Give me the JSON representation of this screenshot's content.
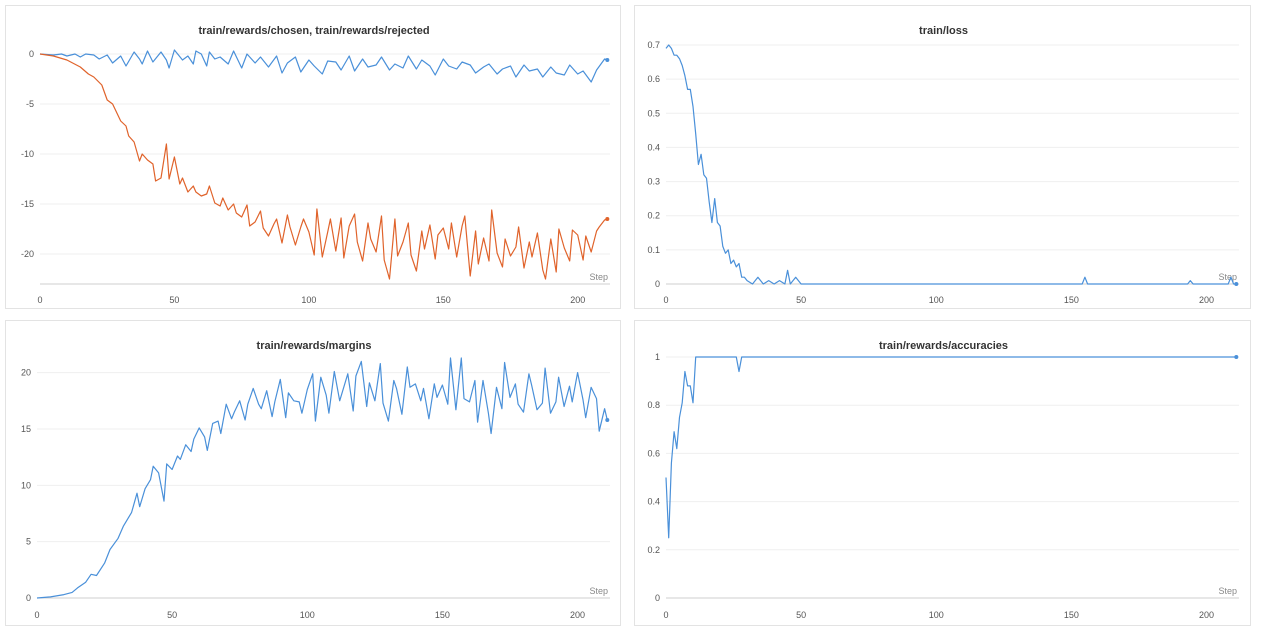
{
  "colors": {
    "blue": "#4a90d9",
    "orange": "#e0632b"
  },
  "chart_data": [
    {
      "type": "line",
      "title": "train/rewards/chosen, train/rewards/rejected",
      "xlabel": "Step",
      "xlim": [
        0,
        212
      ],
      "ylim": [
        -23,
        0.6
      ],
      "xticks": [
        0,
        50,
        100,
        150,
        200
      ],
      "yticks": [
        0,
        -5,
        -10,
        -15,
        -20
      ],
      "series": [
        {
          "color": "#4a90d9",
          "x": [
            0,
            5,
            8,
            10,
            13,
            15,
            17,
            20,
            22,
            25,
            27,
            30,
            32,
            35,
            37,
            38,
            40,
            42,
            45,
            47,
            48,
            50,
            53,
            55,
            57,
            58,
            60,
            62,
            63,
            65,
            67,
            70,
            72,
            75,
            77,
            80,
            82,
            85,
            88,
            90,
            92,
            95,
            97,
            100,
            102,
            105,
            107,
            110,
            112,
            115,
            117,
            120,
            122,
            125,
            127,
            130,
            132,
            135,
            137,
            140,
            142,
            145,
            147,
            150,
            152,
            155,
            157,
            160,
            162,
            165,
            167,
            170,
            172,
            175,
            177,
            180,
            182,
            185,
            187,
            190,
            192,
            195,
            197,
            200,
            202,
            205,
            207,
            210,
            211
          ],
          "y": [
            0,
            -0.1,
            0,
            -0.2,
            0,
            -0.3,
            0,
            -0.1,
            -0.5,
            -0.1,
            -0.9,
            -0.2,
            -1.2,
            0.2,
            -0.5,
            -1.0,
            0.3,
            -0.8,
            0.2,
            -0.6,
            -1.4,
            0.4,
            -0.6,
            -0.2,
            -1.0,
            0.3,
            0,
            -1.2,
            0.2,
            -0.5,
            -0.3,
            -1.0,
            0.3,
            -1.4,
            0,
            -0.9,
            -0.3,
            -1.3,
            -0.2,
            -1.9,
            -0.9,
            -0.3,
            -1.8,
            -0.6,
            -1.2,
            -2.0,
            -0.7,
            -0.8,
            -1.6,
            -0.2,
            -1.7,
            -0.5,
            -1.3,
            -1.1,
            -0.3,
            -1.6,
            -1.0,
            -1.4,
            -0.2,
            -1.5,
            -0.6,
            -1.2,
            -2.1,
            -0.5,
            -1.2,
            -1.5,
            -0.8,
            -1.1,
            -1.9,
            -1.3,
            -1.0,
            -2.0,
            -1.5,
            -1.2,
            -2.3,
            -1.1,
            -1.7,
            -1.5,
            -2.3,
            -1.3,
            -1.9,
            -2.1,
            -1.1,
            -2.0,
            -1.7,
            -2.8,
            -1.6,
            -0.5,
            -0.6
          ]
        },
        {
          "color": "#e0632b",
          "x": [
            0,
            5,
            10,
            15,
            18,
            20,
            23,
            25,
            27,
            30,
            32,
            33,
            35,
            37,
            38,
            40,
            42,
            43,
            45,
            47,
            48,
            50,
            52,
            53,
            55,
            57,
            58,
            60,
            62,
            63,
            65,
            67,
            68,
            70,
            72,
            73,
            75,
            77,
            78,
            80,
            82,
            83,
            85,
            87,
            88,
            90,
            92,
            93,
            95,
            97,
            98,
            100,
            102,
            103,
            105,
            107,
            108,
            110,
            112,
            113,
            115,
            117,
            118,
            120,
            122,
            123,
            125,
            127,
            128,
            130,
            132,
            133,
            135,
            137,
            138,
            140,
            142,
            143,
            145,
            147,
            148,
            150,
            152,
            153,
            155,
            157,
            158,
            160,
            162,
            163,
            165,
            167,
            168,
            170,
            172,
            173,
            175,
            177,
            178,
            180,
            182,
            183,
            185,
            187,
            188,
            190,
            192,
            193,
            195,
            197,
            198,
            200,
            202,
            203,
            205,
            207,
            208,
            210,
            211
          ],
          "y": [
            0,
            -0.2,
            -0.6,
            -1.3,
            -2.0,
            -2.3,
            -3.1,
            -4.6,
            -5.0,
            -6.7,
            -7.2,
            -8.2,
            -8.8,
            -10.7,
            -10.0,
            -10.6,
            -11.0,
            -12.7,
            -12.4,
            -9.0,
            -12.5,
            -10.3,
            -13.0,
            -12.4,
            -13.8,
            -13.2,
            -13.8,
            -14.2,
            -14.0,
            -13.2,
            -14.9,
            -15.2,
            -14.4,
            -15.6,
            -15.0,
            -15.9,
            -16.3,
            -15.1,
            -17.2,
            -16.8,
            -15.7,
            -17.4,
            -18.2,
            -17.0,
            -16.5,
            -18.9,
            -16.1,
            -17.3,
            -19.1,
            -17.3,
            -16.5,
            -17.8,
            -20.1,
            -15.5,
            -20.3,
            -17.8,
            -16.5,
            -19.7,
            -16.4,
            -20.4,
            -17.2,
            -16.0,
            -18.8,
            -20.7,
            -16.9,
            -18.5,
            -19.8,
            -16.2,
            -20.6,
            -22.5,
            -16.5,
            -20.2,
            -18.8,
            -16.9,
            -20.1,
            -21.7,
            -17.7,
            -19.5,
            -17.1,
            -20.5,
            -18.1,
            -17.4,
            -19.5,
            -16.9,
            -20.3,
            -17.2,
            -16.2,
            -22.2,
            -17.7,
            -21.0,
            -18.4,
            -20.7,
            -15.6,
            -19.9,
            -21.3,
            -18.5,
            -20.2,
            -19.3,
            -17.3,
            -21.4,
            -18.8,
            -20.3,
            -17.9,
            -21.6,
            -22.5,
            -18.5,
            -21.8,
            -17.5,
            -19.4,
            -20.7,
            -17.6,
            -18.1,
            -20.6,
            -18.2,
            -19.8,
            -17.7,
            -17.3,
            -16.6,
            -16.5
          ]
        }
      ]
    },
    {
      "type": "line",
      "title": "train/loss",
      "xlabel": "Step",
      "xlim": [
        0,
        212
      ],
      "ylim": [
        0,
        0.7
      ],
      "xticks": [
        0,
        50,
        100,
        150,
        200
      ],
      "yticks": [
        0,
        0.1,
        0.2,
        0.3,
        0.4,
        0.5,
        0.6,
        0.7
      ],
      "series": [
        {
          "color": "#4a90d9",
          "x": [
            0,
            1,
            2,
            3,
            4,
            5,
            6,
            7,
            8,
            9,
            10,
            11,
            12,
            13,
            14,
            15,
            16,
            17,
            18,
            19,
            20,
            21,
            22,
            23,
            24,
            25,
            26,
            27,
            28,
            29,
            30,
            32,
            34,
            36,
            38,
            40,
            42,
            44,
            45,
            46,
            47,
            48,
            50,
            60,
            80,
            100,
            120,
            150,
            154,
            155,
            156,
            160,
            190,
            193,
            194,
            195,
            200,
            205,
            208,
            209,
            210,
            211
          ],
          "y": [
            0.69,
            0.7,
            0.69,
            0.67,
            0.67,
            0.66,
            0.64,
            0.61,
            0.57,
            0.57,
            0.52,
            0.44,
            0.35,
            0.38,
            0.32,
            0.31,
            0.24,
            0.18,
            0.25,
            0.18,
            0.17,
            0.11,
            0.09,
            0.1,
            0.06,
            0.07,
            0.05,
            0.06,
            0.02,
            0.02,
            0.01,
            0.0,
            0.02,
            0.0,
            0.01,
            0.0,
            0.01,
            0.0,
            0.04,
            0.0,
            0.01,
            0.02,
            0.0,
            0.0,
            0.0,
            0.0,
            0.0,
            0.0,
            0.0,
            0.02,
            0.0,
            0.0,
            0.0,
            0.0,
            0.01,
            0.0,
            0.0,
            0.0,
            0.0,
            0.02,
            0.0,
            0.0
          ]
        }
      ]
    },
    {
      "type": "line",
      "title": "train/rewards/margins",
      "xlabel": "Step",
      "xlim": [
        0,
        212
      ],
      "ylim": [
        0,
        21.3
      ],
      "xticks": [
        0,
        50,
        100,
        150,
        200
      ],
      "yticks": [
        0,
        5,
        10,
        15,
        20
      ],
      "series": [
        {
          "color": "#4a90d9",
          "x": [
            0,
            5,
            10,
            13,
            15,
            18,
            20,
            22,
            25,
            27,
            30,
            32,
            35,
            37,
            38,
            40,
            42,
            43,
            45,
            47,
            48,
            50,
            52,
            53,
            55,
            57,
            58,
            60,
            62,
            63,
            65,
            67,
            68,
            70,
            72,
            73,
            75,
            77,
            78,
            80,
            82,
            83,
            85,
            87,
            88,
            90,
            92,
            93,
            95,
            97,
            98,
            100,
            102,
            103,
            105,
            107,
            108,
            110,
            112,
            113,
            115,
            117,
            118,
            120,
            122,
            123,
            125,
            127,
            128,
            130,
            132,
            133,
            135,
            137,
            138,
            140,
            142,
            143,
            145,
            147,
            148,
            150,
            152,
            153,
            155,
            157,
            158,
            160,
            162,
            163,
            165,
            167,
            168,
            170,
            172,
            173,
            175,
            177,
            178,
            180,
            182,
            183,
            185,
            187,
            188,
            190,
            192,
            193,
            195,
            197,
            198,
            200,
            202,
            203,
            205,
            207,
            208,
            210,
            211
          ],
          "y": [
            0,
            0.1,
            0.3,
            0.5,
            0.9,
            1.4,
            2.1,
            2.0,
            3.1,
            4.3,
            5.3,
            6.4,
            7.6,
            9.3,
            8.1,
            9.7,
            10.5,
            11.7,
            11.1,
            8.6,
            11.9,
            11.4,
            12.6,
            12.3,
            13.6,
            13.0,
            14.1,
            15.1,
            14.3,
            13.1,
            15.5,
            15.7,
            14.6,
            17.2,
            15.9,
            16.5,
            17.5,
            15.8,
            17.2,
            18.6,
            17.2,
            16.8,
            18.4,
            16.1,
            17.4,
            19.4,
            16.0,
            18.2,
            17.5,
            17.4,
            16.4,
            18.5,
            19.9,
            15.7,
            19.6,
            18.0,
            16.4,
            20.1,
            17.5,
            18.3,
            19.9,
            16.6,
            19.7,
            21.0,
            17.0,
            19.1,
            17.5,
            20.8,
            17.3,
            15.7,
            19.3,
            18.6,
            16.3,
            20.5,
            18.7,
            19.0,
            17.5,
            18.6,
            15.9,
            19.0,
            17.8,
            18.9,
            17.2,
            21.3,
            16.7,
            21.3,
            17.7,
            17.4,
            19.3,
            15.6,
            19.3,
            16.4,
            14.6,
            18.7,
            16.8,
            20.9,
            17.8,
            19.0,
            17.2,
            16.5,
            19.9,
            18.9,
            16.7,
            17.3,
            20.4,
            16.4,
            17.4,
            19.6,
            17.0,
            18.8,
            17.4,
            20.0,
            17.6,
            16.0,
            18.7,
            17.7,
            14.8,
            16.8,
            15.8
          ]
        }
      ]
    },
    {
      "type": "line",
      "title": "train/rewards/accuracies",
      "xlabel": "Step",
      "xlim": [
        0,
        212
      ],
      "ylim": [
        0,
        1
      ],
      "xticks": [
        0,
        50,
        100,
        150,
        200
      ],
      "yticks": [
        0,
        0.2,
        0.4,
        0.6,
        0.8,
        1
      ],
      "series": [
        {
          "color": "#4a90d9",
          "x": [
            0,
            1,
            2,
            3,
            4,
            5,
            6,
            7,
            8,
            9,
            10,
            11,
            12,
            26,
            27,
            28,
            29,
            100,
            150,
            200,
            211
          ],
          "y": [
            0.5,
            0.25,
            0.56,
            0.69,
            0.62,
            0.75,
            0.81,
            0.94,
            0.88,
            0.88,
            0.81,
            1,
            1,
            1,
            0.94,
            1,
            1,
            1,
            1,
            1,
            1
          ]
        }
      ]
    }
  ]
}
